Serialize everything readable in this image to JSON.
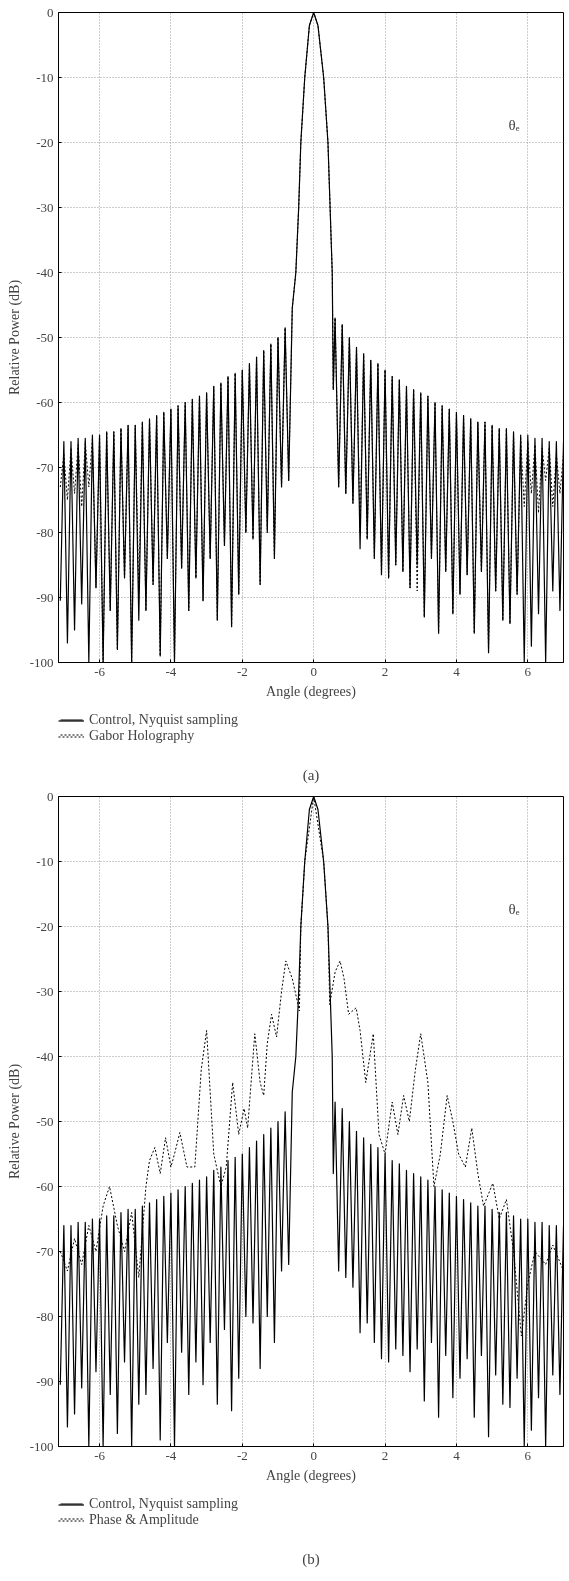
{
  "chart_data": [
    {
      "type": "line",
      "title": "(a)",
      "xlabel": "Angle (degrees)",
      "ylabel": "Relative Power (dB)",
      "annotations": [
        "θₑ"
      ],
      "xlim": [
        -7.15,
        7.0
      ],
      "ylim": [
        -100,
        0
      ],
      "xticks": [
        -6,
        -4,
        -2,
        0,
        2,
        4,
        6
      ],
      "yticks": [
        0,
        -10,
        -20,
        -30,
        -40,
        -50,
        -60,
        -70,
        -80,
        -90,
        -100
      ],
      "grid": true,
      "legend": "bottom",
      "marker": "none",
      "x": [
        -7.1,
        -7.0,
        -6.9,
        -6.8,
        -6.7,
        -6.6,
        -6.5,
        -6.4,
        -6.3,
        -6.2,
        -6.1,
        -6.0,
        -5.9,
        -5.8,
        -5.7,
        -5.6,
        -5.5,
        -5.4,
        -5.3,
        -5.2,
        -5.1,
        -5.0,
        -4.9,
        -4.8,
        -4.7,
        -4.6,
        -4.5,
        -4.4,
        -4.3,
        -4.2,
        -4.1,
        -4.0,
        -3.9,
        -3.8,
        -3.7,
        -3.6,
        -3.5,
        -3.4,
        -3.3,
        -3.2,
        -3.1,
        -3.0,
        -2.9,
        -2.8,
        -2.7,
        -2.6,
        -2.5,
        -2.4,
        -2.3,
        -2.2,
        -2.1,
        -2.0,
        -1.9,
        -1.8,
        -1.7,
        -1.6,
        -1.5,
        -1.4,
        -1.3,
        -1.2,
        -1.1,
        -1.0,
        -0.9,
        -0.8,
        -0.7,
        -0.6,
        -0.5,
        -0.42,
        -0.36,
        -0.25,
        -0.12,
        0,
        0.12,
        0.28,
        0.4,
        0.46,
        0.52,
        0.55,
        0.6,
        0.7,
        0.8,
        0.9,
        1.0,
        1.1,
        1.2,
        1.3,
        1.4,
        1.5,
        1.6,
        1.7,
        1.8,
        1.9,
        2.0,
        2.1,
        2.2,
        2.3,
        2.4,
        2.5,
        2.6,
        2.7,
        2.8,
        2.9,
        3.0,
        3.1,
        3.2,
        3.3,
        3.4,
        3.5,
        3.6,
        3.7,
        3.8,
        3.9,
        4.0,
        4.1,
        4.2,
        4.3,
        4.4,
        4.5,
        4.6,
        4.7,
        4.8,
        4.9,
        5.0,
        5.1,
        5.2,
        5.3,
        5.4,
        5.5,
        5.6,
        5.7,
        5.8,
        5.9,
        6.0,
        6.1,
        6.2,
        6.3,
        6.4,
        6.5,
        6.6,
        6.7,
        6.8,
        6.9,
        7.0
      ],
      "series": [
        {
          "name": "Control, Nyquist sampling",
          "color": "#000000",
          "line_style": "solid",
          "values": [
            -90.5,
            -66,
            -97,
            -66,
            -95,
            -65.5,
            -91,
            -65.5,
            -100,
            -65,
            -88.5,
            -65,
            -100,
            -64.5,
            -92,
            -64.5,
            -98,
            -64,
            -87,
            -63.5,
            -100,
            -63.5,
            -93.5,
            -63,
            -92,
            -62.5,
            -88,
            -62,
            -99,
            -61.5,
            -84,
            -61,
            -100,
            -60.5,
            -85.5,
            -60,
            -92,
            -59.5,
            -87,
            -59,
            -90.5,
            -58.5,
            -84,
            -57.5,
            -93.5,
            -57,
            -82,
            -56,
            -94.5,
            -55.5,
            -89.5,
            -55,
            -80,
            -54,
            -81,
            -53,
            -88,
            -52,
            -80,
            -51,
            -84,
            -50,
            -73,
            -48.5,
            -72,
            -45.5,
            -40,
            -30,
            -20,
            -10,
            -2,
            0,
            -2,
            -10,
            -20,
            -30,
            -40,
            -58,
            -47,
            -73,
            -48,
            -74,
            -50,
            -75.5,
            -51.5,
            -82.5,
            -52.5,
            -81,
            -53.5,
            -84,
            -54,
            -86.5,
            -55,
            -87,
            -56,
            -85,
            -56.5,
            -86,
            -57.5,
            -88.5,
            -58,
            -85,
            -58.5,
            -93,
            -59,
            -84,
            -60,
            -95.5,
            -60.5,
            -86,
            -61,
            -92.5,
            -61.5,
            -89.5,
            -62,
            -86.5,
            -62.5,
            -95.5,
            -63,
            -86,
            -63,
            -98.5,
            -63.5,
            -89,
            -64,
            -93.5,
            -64,
            -94,
            -64.5,
            -89.5,
            -65,
            -100,
            -65,
            -97.5,
            -65.5,
            -92.5,
            -65.5,
            -100,
            -66,
            -89,
            -66,
            -92,
            -66
          ]
        },
        {
          "name": "Gabor Holography",
          "color": "#000000",
          "line_style": "dotted",
          "values": [
            -73,
            -68,
            -75,
            -67,
            -74,
            -66.5,
            -76,
            -66,
            -73,
            -65.5,
            -88.5,
            -65,
            -100,
            -64.5,
            -92,
            -64.5,
            -98,
            -64,
            -87,
            -63.5,
            -100,
            -63.5,
            -89,
            -63,
            -92,
            -62.5,
            -88,
            -62,
            -99,
            -61.5,
            -84,
            -61,
            -100,
            -60.5,
            -85.5,
            -60,
            -92,
            -59.5,
            -87,
            -59,
            -90.5,
            -58.5,
            -84,
            -57.5,
            -93.5,
            -57,
            -82,
            -56,
            -94.5,
            -55.5,
            -89.5,
            -55,
            -80,
            -54,
            -81,
            -53,
            -88,
            -52,
            -79.5,
            -51,
            -84,
            -50,
            -73,
            -48.5,
            -72,
            -45.5,
            -40,
            -30,
            -20,
            -10,
            -2,
            0,
            -2,
            -10,
            -20,
            -30,
            -40,
            -58,
            -47,
            -73,
            -48,
            -74,
            -50,
            -75.5,
            -51.5,
            -80,
            -52.5,
            -81,
            -53.5,
            -84,
            -54,
            -86.5,
            -55,
            -87,
            -56,
            -85,
            -56.5,
            -86,
            -57.5,
            -88.5,
            -58,
            -89,
            -58.5,
            -93,
            -59,
            -84,
            -60,
            -95.5,
            -60.5,
            -86,
            -61,
            -92.5,
            -61.5,
            -89.5,
            -62,
            -86.5,
            -62.5,
            -95.5,
            -63,
            -86,
            -63,
            -98.5,
            -63.5,
            -89,
            -64,
            -93.5,
            -64,
            -94,
            -64.5,
            -89.5,
            -65.5,
            -76,
            -66,
            -74,
            -66.5,
            -77,
            -67,
            -72,
            -67,
            -76,
            -68,
            -74,
            -68
          ]
        }
      ]
    },
    {
      "type": "line",
      "title": "(b)",
      "xlabel": "Angle (degrees)",
      "ylabel": "Relative Power (dB)",
      "annotations": [
        "θₑ"
      ],
      "xlim": [
        -7.15,
        7.0
      ],
      "ylim": [
        -100,
        0
      ],
      "xticks": [
        -6,
        -4,
        -2,
        0,
        2,
        4,
        6
      ],
      "yticks": [
        0,
        -10,
        -20,
        -30,
        -40,
        -50,
        -60,
        -70,
        -80,
        -90,
        -100
      ],
      "grid": true,
      "legend": "bottom",
      "marker": "none",
      "x": [
        -7.1,
        -7.0,
        -6.9,
        -6.8,
        -6.7,
        -6.6,
        -6.5,
        -6.4,
        -6.3,
        -6.2,
        -6.1,
        -6.0,
        -5.9,
        -5.8,
        -5.7,
        -5.6,
        -5.5,
        -5.4,
        -5.3,
        -5.2,
        -5.1,
        -5.0,
        -4.9,
        -4.8,
        -4.7,
        -4.6,
        -4.5,
        -4.4,
        -4.3,
        -4.2,
        -4.1,
        -4.0,
        -3.9,
        -3.8,
        -3.7,
        -3.6,
        -3.5,
        -3.4,
        -3.3,
        -3.2,
        -3.1,
        -3.0,
        -2.9,
        -2.8,
        -2.7,
        -2.6,
        -2.5,
        -2.4,
        -2.3,
        -2.2,
        -2.1,
        -2.0,
        -1.9,
        -1.8,
        -1.7,
        -1.6,
        -1.5,
        -1.4,
        -1.3,
        -1.2,
        -1.1,
        -1.0,
        -0.9,
        -0.8,
        -0.7,
        -0.6,
        -0.5,
        -0.42,
        -0.36,
        -0.25,
        -0.12,
        0,
        0.12,
        0.28,
        0.4,
        0.46,
        0.52,
        0.55,
        0.6,
        0.7,
        0.8,
        0.9,
        1.0,
        1.1,
        1.2,
        1.3,
        1.4,
        1.5,
        1.6,
        1.7,
        1.8,
        1.9,
        2.0,
        2.1,
        2.2,
        2.3,
        2.4,
        2.5,
        2.6,
        2.7,
        2.8,
        2.9,
        3.0,
        3.1,
        3.2,
        3.3,
        3.4,
        3.5,
        3.6,
        3.7,
        3.8,
        3.9,
        4.0,
        4.1,
        4.2,
        4.3,
        4.4,
        4.5,
        4.6,
        4.7,
        4.8,
        4.9,
        5.0,
        5.1,
        5.2,
        5.3,
        5.4,
        5.5,
        5.6,
        5.7,
        5.8,
        5.9,
        6.0,
        6.1,
        6.2,
        6.3,
        6.4,
        6.5,
        6.6,
        6.7,
        6.8,
        6.9,
        7.0
      ],
      "series": [
        {
          "name": "Control, Nyquist sampling",
          "color": "#000000",
          "line_style": "solid",
          "values": [
            -90.5,
            -66,
            -97,
            -66,
            -95,
            -65.5,
            -91,
            -65.5,
            -100,
            -65,
            -88.5,
            -65,
            -100,
            -64.5,
            -92,
            -64.5,
            -98,
            -64,
            -87,
            -63.5,
            -100,
            -63.5,
            -93.5,
            -63,
            -92,
            -62.5,
            -88,
            -62,
            -99,
            -61.5,
            -84,
            -61,
            -100,
            -60.5,
            -85.5,
            -60,
            -92,
            -59.5,
            -87,
            -59,
            -90.5,
            -58.5,
            -84,
            -57.5,
            -93.5,
            -57,
            -82,
            -56,
            -94.5,
            -55.5,
            -89.5,
            -55,
            -80,
            -54,
            -81,
            -53,
            -88,
            -52,
            -80,
            -51,
            -84,
            -50,
            -73,
            -48.5,
            -72,
            -45.5,
            -40,
            -30,
            -20,
            -10,
            -2,
            0,
            -2,
            -10,
            -20,
            -30,
            -40,
            -58,
            -47,
            -73,
            -48,
            -74,
            -50,
            -75.5,
            -51.5,
            -82.5,
            -52.5,
            -81,
            -53.5,
            -84,
            -54,
            -86.5,
            -55,
            -87,
            -56,
            -85,
            -56.5,
            -86,
            -57.5,
            -88.5,
            -58,
            -85,
            -58.5,
            -93,
            -59,
            -84,
            -60,
            -95.5,
            -60.5,
            -86,
            -61,
            -92.5,
            -61.5,
            -89.5,
            -62,
            -86.5,
            -62.5,
            -95.5,
            -63,
            -86,
            -63,
            -98.5,
            -63.5,
            -89,
            -64,
            -93.5,
            -64,
            -94,
            -64.5,
            -89.5,
            -65,
            -100,
            -65,
            -97.5,
            -65.5,
            -92.5,
            -65.5,
            -100,
            -66,
            -89,
            -66,
            -92,
            -66
          ]
        },
        {
          "name": "Phase & Amplitude",
          "color": "#000000",
          "line_style": "dotted",
          "x": [
            -7.1,
            -6.9,
            -6.7,
            -6.5,
            -6.3,
            -6.1,
            -5.9,
            -5.72,
            -5.5,
            -5.3,
            -5.1,
            -4.9,
            -4.7,
            -4.6,
            -4.45,
            -4.3,
            -4.15,
            -4.0,
            -3.9,
            -3.75,
            -3.55,
            -3.33,
            -3.15,
            -3.0,
            -2.8,
            -2.6,
            -2.45,
            -2.27,
            -2.1,
            -1.95,
            -1.85,
            -1.65,
            -1.5,
            -1.4,
            -1.3,
            -1.18,
            -1.04,
            -0.9,
            -0.78,
            -0.6,
            -0.4,
            -0.36,
            -0.25,
            0,
            0.28,
            0.4,
            0.45,
            0.6,
            0.74,
            0.85,
            0.98,
            1.19,
            1.3,
            1.46,
            1.67,
            1.83,
            2.0,
            2.2,
            2.36,
            2.52,
            2.68,
            2.85,
            3.0,
            3.2,
            3.37,
            3.55,
            3.74,
            3.9,
            4.06,
            4.25,
            4.43,
            4.6,
            4.76,
            5.02,
            5.2,
            5.4,
            5.6,
            5.82,
            6.0,
            6.2,
            6.5,
            6.7,
            7.0
          ],
          "values": [
            -70,
            -73,
            -68,
            -72,
            -66,
            -70,
            -63,
            -60,
            -66,
            -70,
            -64,
            -74,
            -60,
            -56,
            -54,
            -58,
            -52.5,
            -57,
            -55,
            -51.7,
            -57,
            -57,
            -42,
            -36,
            -55,
            -60,
            -57,
            -44,
            -52,
            -48,
            -51,
            -36.5,
            -44,
            -46,
            -38,
            -33.5,
            -37,
            -30,
            -25.3,
            -28,
            -33,
            -20,
            -10,
            0,
            -10,
            -20,
            -32,
            -27,
            -25.3,
            -28,
            -33.5,
            -32.5,
            -36,
            -44,
            -36.5,
            -52,
            -55,
            -47,
            -52,
            -46,
            -50,
            -42,
            -36.5,
            -44,
            -60,
            -55,
            -46,
            -50,
            -55,
            -57,
            -51,
            -58,
            -63,
            -59.5,
            -65,
            -62,
            -70,
            -83,
            -75,
            -70,
            -72,
            -69,
            -73
          ]
        }
      ]
    }
  ]
}
